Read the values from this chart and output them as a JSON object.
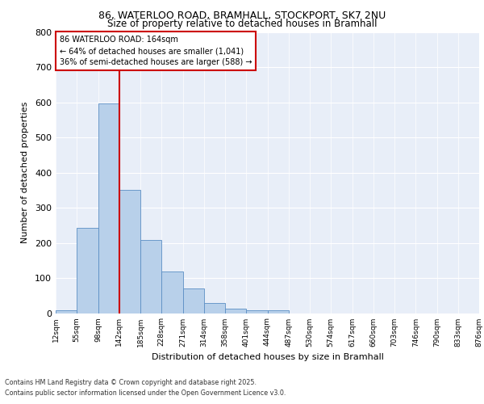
{
  "title1": "86, WATERLOO ROAD, BRAMHALL, STOCKPORT, SK7 2NU",
  "title2": "Size of property relative to detached houses in Bramhall",
  "xlabel": "Distribution of detached houses by size in Bramhall",
  "ylabel": "Number of detached properties",
  "bar_values": [
    8,
    242,
    598,
    352,
    208,
    119,
    70,
    28,
    12,
    7,
    8,
    0,
    0,
    0,
    0,
    0,
    0,
    0,
    0,
    0
  ],
  "bin_labels": [
    "12sqm",
    "55sqm",
    "98sqm",
    "142sqm",
    "185sqm",
    "228sqm",
    "271sqm",
    "314sqm",
    "358sqm",
    "401sqm",
    "444sqm",
    "487sqm",
    "530sqm",
    "574sqm",
    "617sqm",
    "660sqm",
    "703sqm",
    "746sqm",
    "790sqm",
    "833sqm",
    "876sqm"
  ],
  "bar_color": "#b8d0ea",
  "bar_edge_color": "#5b8ec4",
  "bar_width": 1.0,
  "vline_x": 3,
  "vline_color": "#cc0000",
  "annotation_title": "86 WATERLOO ROAD: 164sqm",
  "annotation_line1": "← 64% of detached houses are smaller (1,041)",
  "annotation_line2": "36% of semi-detached houses are larger (588) →",
  "annotation_box_color": "#cc0000",
  "ylim": [
    0,
    800
  ],
  "yticks": [
    0,
    100,
    200,
    300,
    400,
    500,
    600,
    700,
    800
  ],
  "footer1": "Contains HM Land Registry data © Crown copyright and database right 2025.",
  "footer2": "Contains public sector information licensed under the Open Government Licence v3.0.",
  "bg_color": "#ffffff",
  "plot_bg": "#e8eef8"
}
